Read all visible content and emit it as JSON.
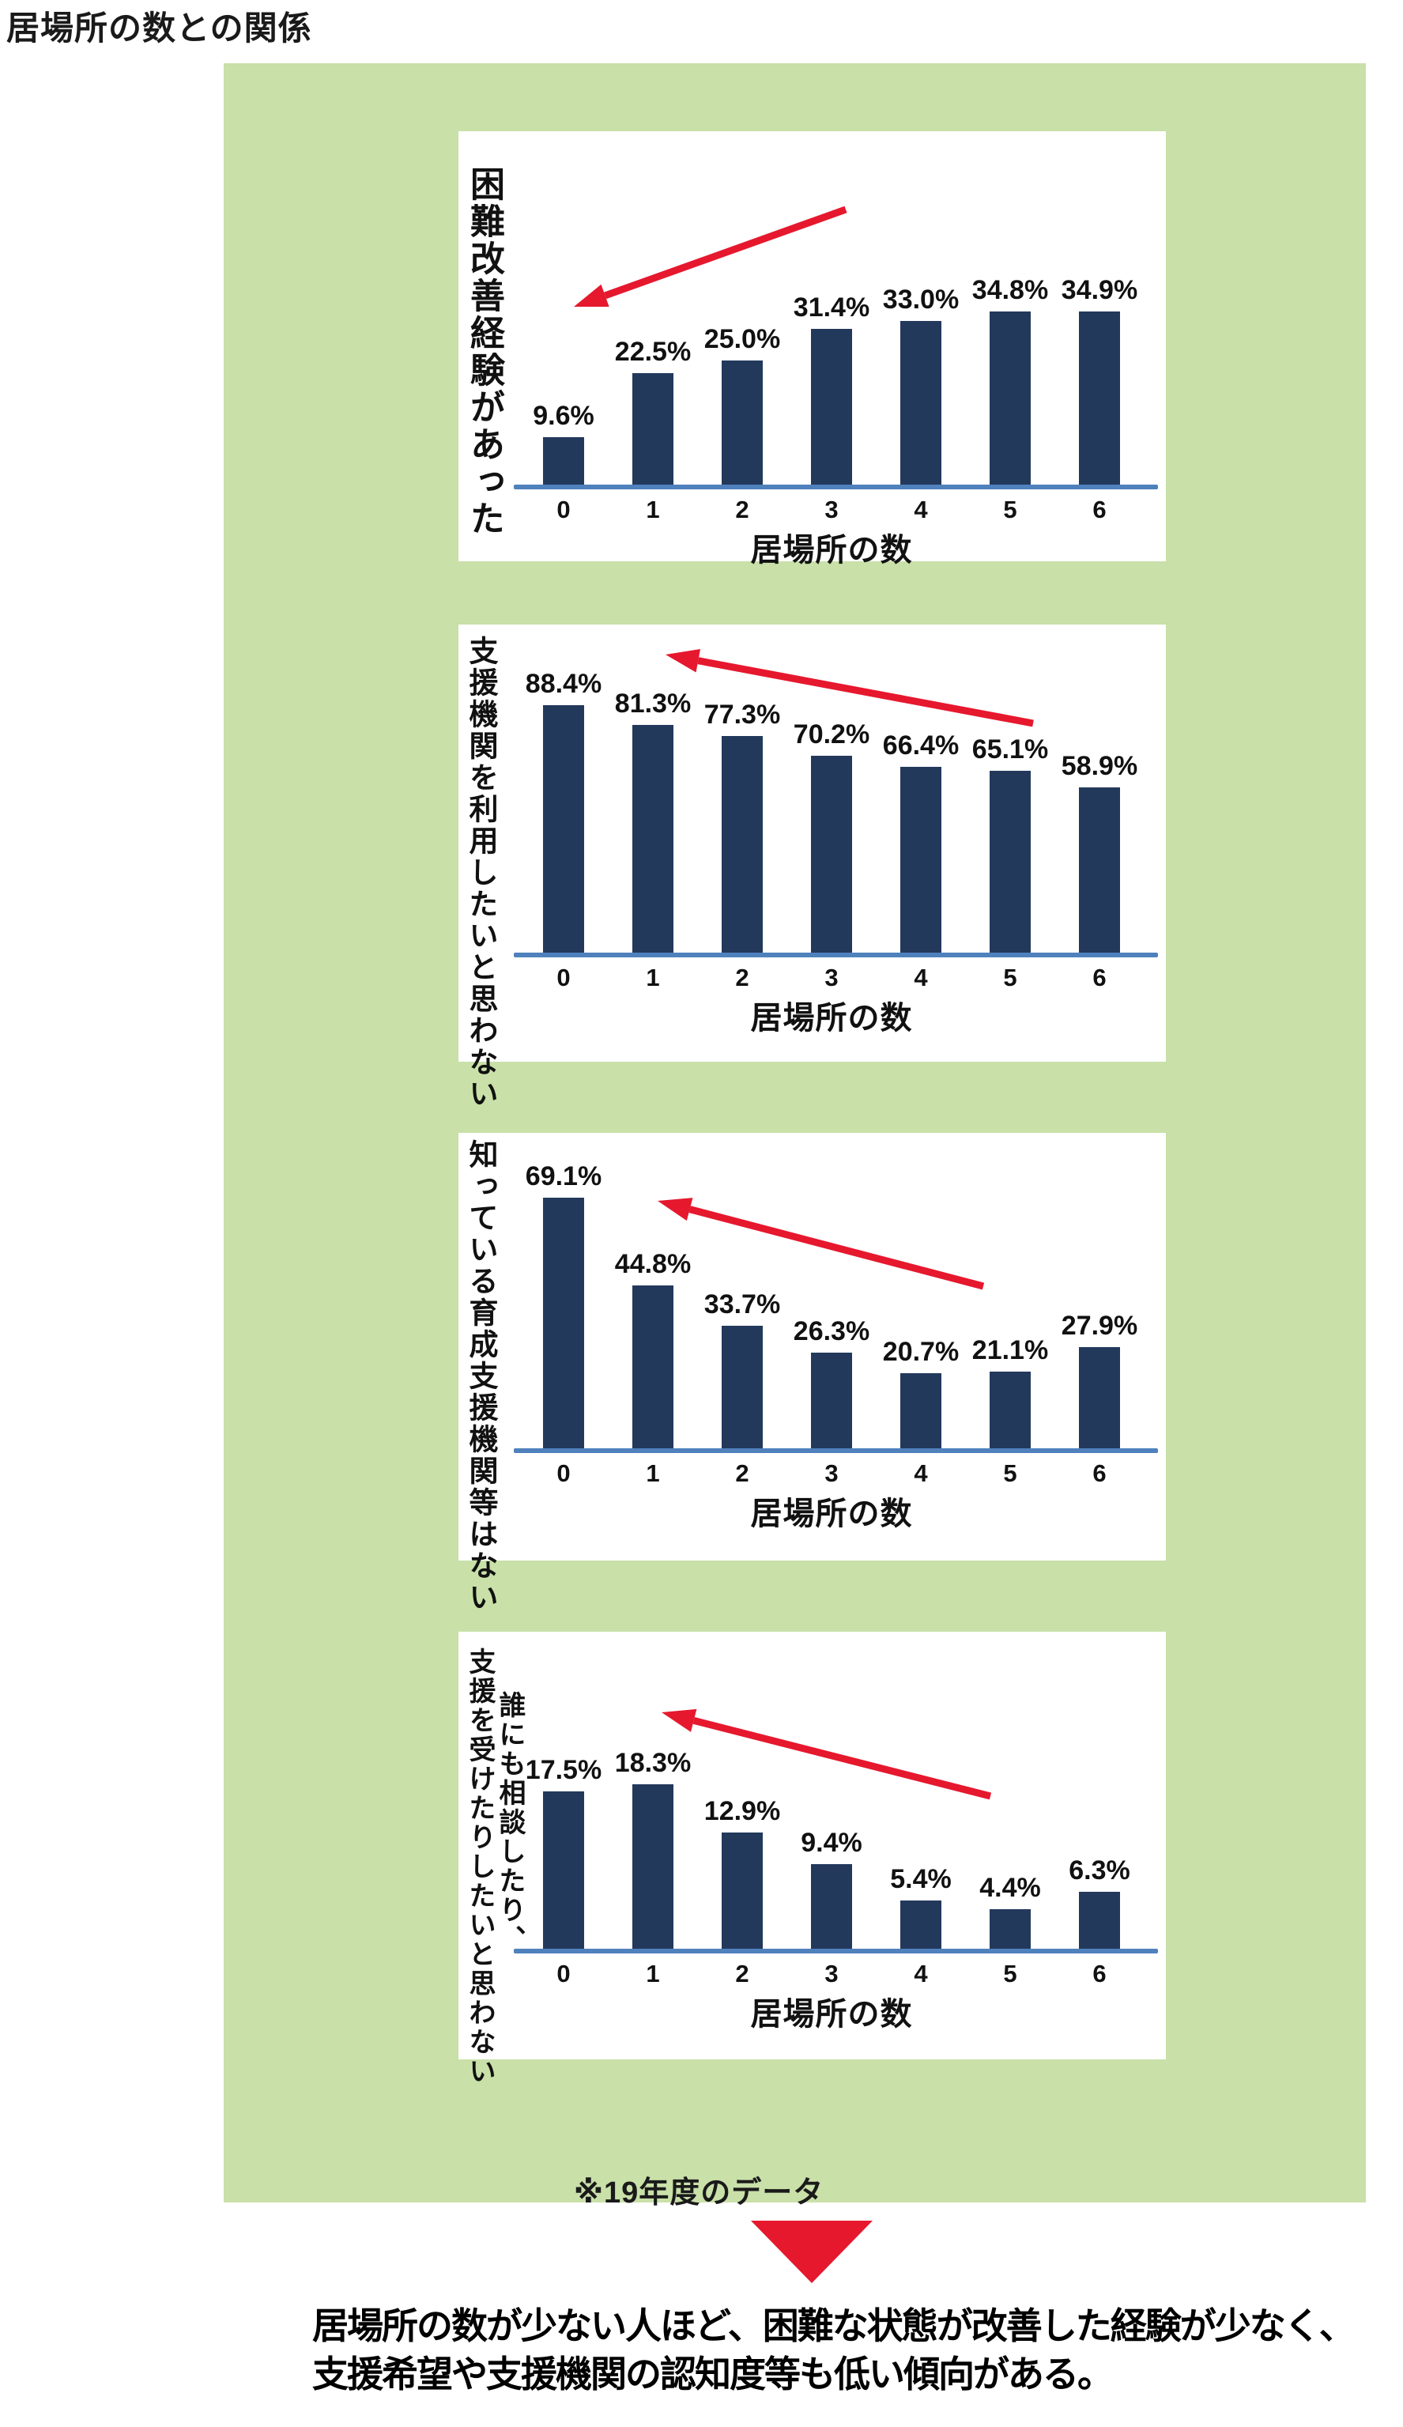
{
  "page_title": "居場所の数との関係",
  "note": "※19年度のデータ",
  "conclusion": {
    "line1": "居場所の数が少ない人ほど、困難な状態が改善した経験が少なく、",
    "line2": "支援希望や支援機関の認知度等も低い傾向がある。"
  },
  "colors": {
    "panel_green": "#c9e0a9",
    "bar_navy": "#23395c",
    "baseline_blue": "#4f81bd",
    "arrow_red": "#e6182e",
    "text_black": "#111111"
  },
  "chart_data": [
    {
      "type": "bar",
      "side_label_lines": [
        "困難改善経験があった"
      ],
      "categories": [
        "0",
        "1",
        "2",
        "3",
        "4",
        "5",
        "6"
      ],
      "values": [
        9.6,
        22.5,
        25.0,
        31.4,
        33.0,
        34.8,
        34.9
      ],
      "value_labels": [
        "9.6%",
        "22.5%",
        "25.0%",
        "31.4%",
        "33.0%",
        "34.8%",
        "34.9%"
      ],
      "xlabel": "居場所の数",
      "trend_arrow": "points-lower-left",
      "ylim": [
        0,
        40
      ]
    },
    {
      "type": "bar",
      "side_label_lines": [
        "支援機関を利用したいと思わない"
      ],
      "categories": [
        "0",
        "1",
        "2",
        "3",
        "4",
        "5",
        "6"
      ],
      "values": [
        88.4,
        81.3,
        77.3,
        70.2,
        66.4,
        65.1,
        58.9
      ],
      "value_labels": [
        "88.4%",
        "81.3%",
        "77.3%",
        "70.2%",
        "66.4%",
        "65.1%",
        "58.9%"
      ],
      "xlabel": "居場所の数",
      "trend_arrow": "points-upper-left",
      "ylim": [
        0,
        100
      ]
    },
    {
      "type": "bar",
      "side_label_lines": [
        "知っている育成支援機関等はない"
      ],
      "categories": [
        "0",
        "1",
        "2",
        "3",
        "4",
        "5",
        "6"
      ],
      "values": [
        69.1,
        44.8,
        33.7,
        26.3,
        20.7,
        21.1,
        27.9
      ],
      "value_labels": [
        "69.1%",
        "44.8%",
        "33.7%",
        "26.3%",
        "20.7%",
        "21.1%",
        "27.9%"
      ],
      "xlabel": "居場所の数",
      "trend_arrow": "points-upper-left",
      "ylim": [
        0,
        80
      ]
    },
    {
      "type": "bar",
      "side_label_lines": [
        "誰にも相談したり、",
        "支援を受けたりしたいと思わない"
      ],
      "categories": [
        "0",
        "1",
        "2",
        "3",
        "4",
        "5",
        "6"
      ],
      "values": [
        17.5,
        18.3,
        12.9,
        9.4,
        5.4,
        4.4,
        6.3
      ],
      "value_labels": [
        "17.5%",
        "18.3%",
        "12.9%",
        "9.4%",
        "5.4%",
        "4.4%",
        "6.3%"
      ],
      "xlabel": "居場所の数",
      "trend_arrow": "points-upper-left",
      "ylim": [
        0,
        20
      ]
    }
  ]
}
